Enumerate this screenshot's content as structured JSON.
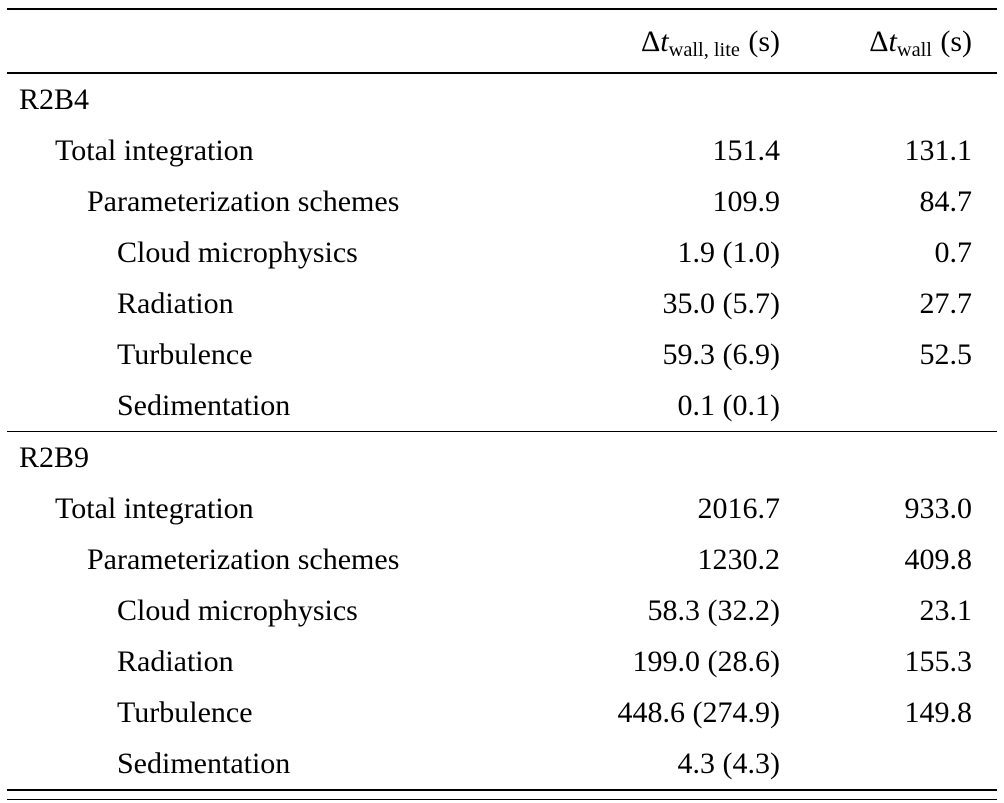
{
  "table": {
    "columns": [
      {
        "delta": "Δ",
        "symbol": "t",
        "subscript": "wall, lite",
        "unit": "(s)"
      },
      {
        "delta": "Δ",
        "symbol": "t",
        "subscript": "wall",
        "unit": "(s)"
      }
    ],
    "sections": [
      {
        "title": "R2B4",
        "rows": [
          {
            "label": "Total integration",
            "lite": "151.4",
            "wall": "131.1"
          },
          {
            "label": "Parameterization schemes",
            "lite": "109.9",
            "wall": "84.7"
          },
          {
            "label": "Cloud microphysics",
            "lite": "1.9 (1.0)",
            "wall": "0.7"
          },
          {
            "label": "Radiation",
            "lite": "35.0 (5.7)",
            "wall": "27.7"
          },
          {
            "label": "Turbulence",
            "lite": "59.3 (6.9)",
            "wall": "52.5"
          },
          {
            "label": "Sedimentation",
            "lite": "0.1 (0.1)",
            "wall": ""
          }
        ]
      },
      {
        "title": "R2B9",
        "rows": [
          {
            "label": "Total integration",
            "lite": "2016.7",
            "wall": "933.0"
          },
          {
            "label": "Parameterization schemes",
            "lite": "1230.2",
            "wall": "409.8"
          },
          {
            "label": "Cloud microphysics",
            "lite": "58.3 (32.2)",
            "wall": "23.1"
          },
          {
            "label": "Radiation",
            "lite": "199.0 (28.6)",
            "wall": "155.3"
          },
          {
            "label": "Turbulence",
            "lite": "448.6 (274.9)",
            "wall": "149.8"
          },
          {
            "label": "Sedimentation",
            "lite": "4.3 (4.3)",
            "wall": ""
          }
        ]
      }
    ]
  },
  "chart_data": {
    "type": "table",
    "title": "",
    "column_headers": [
      "",
      "Δt_wall,lite (s)",
      "Δt_wall (s)"
    ],
    "rows": [
      [
        "R2B4",
        "",
        ""
      ],
      [
        "Total integration",
        "151.4",
        "131.1"
      ],
      [
        "Parameterization schemes",
        "109.9",
        "84.7"
      ],
      [
        "Cloud microphysics",
        "1.9 (1.0)",
        "0.7"
      ],
      [
        "Radiation",
        "35.0 (5.7)",
        "27.7"
      ],
      [
        "Turbulence",
        "59.3 (6.9)",
        "52.5"
      ],
      [
        "Sedimentation",
        "0.1 (0.1)",
        ""
      ],
      [
        "R2B9",
        "",
        ""
      ],
      [
        "Total integration",
        "2016.7",
        "933.0"
      ],
      [
        "Parameterization schemes",
        "1230.2",
        "409.8"
      ],
      [
        "Cloud microphysics",
        "58.3 (32.2)",
        "23.1"
      ],
      [
        "Radiation",
        "199.0 (28.6)",
        "155.3"
      ],
      [
        "Turbulence",
        "448.6 (274.9)",
        "149.8"
      ],
      [
        "Sedimentation",
        "4.3 (4.3)",
        ""
      ]
    ]
  }
}
